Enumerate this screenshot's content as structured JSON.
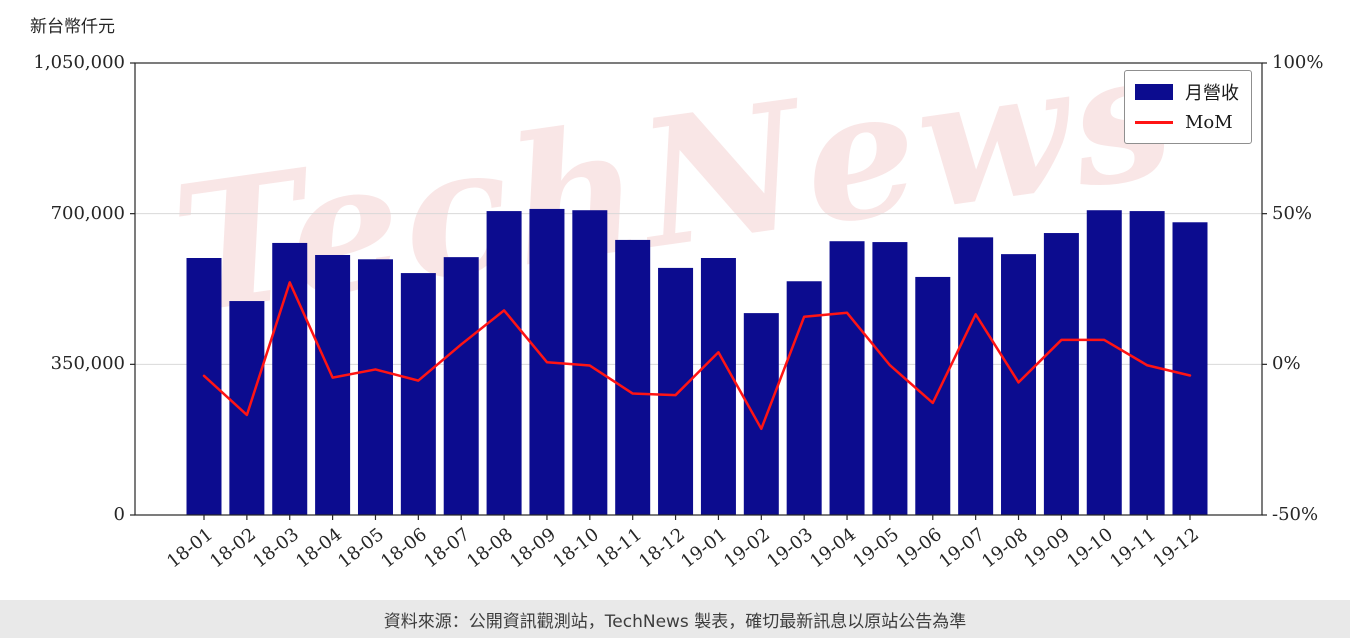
{
  "unit_label": "新台幣仟元",
  "watermark": "TechNews",
  "legend": {
    "bar_label": "月營收",
    "line_label": "MoM"
  },
  "footer": {
    "text": "資料來源：公開資訊觀測站，TechNews 製表，確切最新訊息以原站公告為準"
  },
  "colors": {
    "bar": "#0c0c8f",
    "line": "#ff1414",
    "grid": "#d9d9d9",
    "axis": "#262626",
    "watermark": "#f5d6d6",
    "footer_bg": "#e9e9e9"
  },
  "chart_data": {
    "type": "bar",
    "title": "",
    "xlabel": "",
    "ylabel": "新台幣仟元",
    "grid": true,
    "legend_position": "top-right",
    "categories": [
      "18-01",
      "18-02",
      "18-03",
      "18-04",
      "18-05",
      "18-06",
      "18-07",
      "18-08",
      "18-09",
      "18-10",
      "18-11",
      "18-12",
      "19-01",
      "19-02",
      "19-03",
      "19-04",
      "19-05",
      "19-06",
      "19-07",
      "19-08",
      "19-09",
      "19-10",
      "19-11",
      "19-12"
    ],
    "series": [
      {
        "name": "月營收",
        "type": "bar",
        "axis": "left",
        "values": [
          597000,
          497000,
          632000,
          604000,
          594000,
          562000,
          599000,
          706000,
          711000,
          708000,
          639000,
          574000,
          597000,
          469000,
          543000,
          636000,
          634000,
          553000,
          645000,
          606000,
          655000,
          708000,
          706000,
          680000
        ]
      },
      {
        "name": "MoM",
        "type": "line",
        "axis": "right",
        "values": [
          -3.8,
          -16.8,
          27.2,
          -4.4,
          -1.7,
          -5.4,
          6.6,
          17.9,
          0.7,
          -0.4,
          -9.7,
          -10.2,
          4.0,
          -21.4,
          15.8,
          17.1,
          -0.3,
          -12.8,
          16.6,
          -6.0,
          8.1,
          8.1,
          -0.3,
          -3.7
        ]
      }
    ],
    "left_axis": {
      "min": 0,
      "max": 1050000,
      "tick_values": [
        0,
        350000,
        700000,
        1050000
      ],
      "tick_labels": [
        "0",
        "350,000",
        "700,000",
        "1,050,000"
      ]
    },
    "right_axis": {
      "min": -50,
      "max": 100,
      "tick_values": [
        -50,
        0,
        50,
        100
      ],
      "tick_labels": [
        "-50%",
        "0%",
        "50%",
        "100%"
      ]
    }
  }
}
